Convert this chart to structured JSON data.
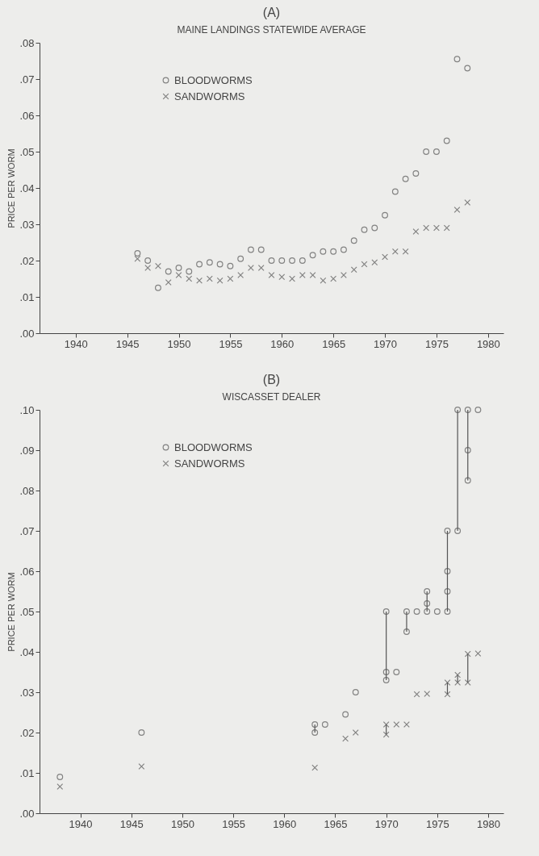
{
  "chart_data": [
    {
      "type": "scatter",
      "title": "(A)",
      "subtitle": "MAINE LANDINGS   STATEWIDE AVERAGE",
      "ylabel": "PRICE PER WORM",
      "legend": "top left",
      "grid": false,
      "xlim": [
        1936.5,
        1981.5
      ],
      "xticks": [
        1940,
        1945,
        1950,
        1955,
        1960,
        1965,
        1970,
        1975,
        1980
      ],
      "ylim": [
        0,
        0.08
      ],
      "yticks": [
        {
          "value": 0,
          "label": ".00"
        },
        {
          "value": 0.01,
          "label": ".01"
        },
        {
          "value": 0.02,
          "label": ".02"
        },
        {
          "value": 0.03,
          "label": ".03"
        },
        {
          "value": 0.04,
          "label": ".04"
        },
        {
          "value": 0.05,
          "label": ".05"
        },
        {
          "value": 0.06,
          "label": ".06"
        },
        {
          "value": 0.07,
          "label": ".07"
        },
        {
          "value": 0.08,
          "label": ".08"
        }
      ],
      "series": [
        {
          "name": "BLOODWORMS",
          "color": "#555555",
          "marker": "circle",
          "x": [
            1946,
            1947,
            1948,
            1949,
            1950,
            1951,
            1952,
            1953,
            1954,
            1955,
            1956,
            1957,
            1958,
            1959,
            1960,
            1961,
            1962,
            1963,
            1964,
            1965,
            1966,
            1967,
            1968,
            1969,
            1970,
            1971,
            1972,
            1973,
            1974,
            1975,
            1976,
            1977,
            1978
          ],
          "values": [
            0.022,
            0.02,
            0.0125,
            0.017,
            0.018,
            0.017,
            0.019,
            0.0195,
            0.019,
            0.0185,
            0.0205,
            0.023,
            0.023,
            0.02,
            0.02,
            0.02,
            0.02,
            0.0215,
            0.0225,
            0.0225,
            0.023,
            0.0255,
            0.0285,
            0.029,
            0.0325,
            0.039,
            0.0425,
            0.044,
            0.05,
            0.05,
            0.053,
            0.0755,
            0.073
          ]
        },
        {
          "name": "SANDWORMS",
          "color": "#555555",
          "marker": "cross",
          "x": [
            1946,
            1947,
            1948,
            1949,
            1950,
            1951,
            1952,
            1953,
            1954,
            1955,
            1956,
            1957,
            1958,
            1959,
            1960,
            1961,
            1962,
            1963,
            1964,
            1965,
            1966,
            1967,
            1968,
            1969,
            1970,
            1971,
            1972,
            1973,
            1974,
            1975,
            1976,
            1977,
            1978
          ],
          "values": [
            0.0205,
            0.018,
            0.0185,
            0.014,
            0.016,
            0.015,
            0.0145,
            0.015,
            0.0145,
            0.015,
            0.016,
            0.018,
            0.018,
            0.016,
            0.0155,
            0.015,
            0.016,
            0.016,
            0.0145,
            0.015,
            0.016,
            0.0175,
            0.019,
            0.0195,
            0.021,
            0.0225,
            0.0225,
            0.028,
            0.029,
            0.029,
            0.029,
            0.034,
            0.036
          ]
        }
      ]
    },
    {
      "type": "scatter",
      "title": "(B)",
      "subtitle": "WISCASSET DEALER",
      "ylabel": "PRICE PER WORM",
      "legend": "top left",
      "grid": false,
      "xlim": [
        1936,
        1981.5
      ],
      "xticks": [
        1940,
        1945,
        1950,
        1955,
        1960,
        1965,
        1970,
        1975,
        1980
      ],
      "ylim": [
        0,
        0.1
      ],
      "yticks": [
        {
          "value": 0,
          "label": ".00"
        },
        {
          "value": 0.01,
          "label": ".01"
        },
        {
          "value": 0.02,
          "label": ".02"
        },
        {
          "value": 0.03,
          "label": ".03"
        },
        {
          "value": 0.04,
          "label": ".04"
        },
        {
          "value": 0.05,
          "label": ".05"
        },
        {
          "value": 0.06,
          "label": ".06"
        },
        {
          "value": 0.07,
          "label": ".07"
        },
        {
          "value": 0.08,
          "label": ".08"
        },
        {
          "value": 0.09,
          "label": ".09"
        },
        {
          "value": 0.1,
          "label": ".10"
        }
      ],
      "series": [
        {
          "type": "line",
          "color": "#555555",
          "marker": "none",
          "line_style": "solid",
          "x": [
            1963,
            1963
          ],
          "values": [
            0.02,
            0.022
          ]
        },
        {
          "type": "line",
          "color": "#555555",
          "marker": "none",
          "line_style": "solid",
          "x": [
            1970,
            1970
          ],
          "values": [
            0.033,
            0.05
          ]
        },
        {
          "type": "line",
          "color": "#555555",
          "marker": "none",
          "line_style": "solid",
          "x": [
            1972,
            1972
          ],
          "values": [
            0.045,
            0.05
          ]
        },
        {
          "type": "line",
          "color": "#555555",
          "marker": "none",
          "line_style": "solid",
          "x": [
            1974,
            1974
          ],
          "values": [
            0.05,
            0.055
          ]
        },
        {
          "type": "line",
          "color": "#555555",
          "marker": "none",
          "line_style": "solid",
          "x": [
            1976,
            1976
          ],
          "values": [
            0.05,
            0.07
          ]
        },
        {
          "type": "line",
          "color": "#555555",
          "marker": "none",
          "line_style": "solid",
          "x": [
            1977,
            1977
          ],
          "values": [
            0.07,
            0.1
          ]
        },
        {
          "type": "line",
          "color": "#555555",
          "marker": "none",
          "line_style": "solid",
          "x": [
            1978,
            1978
          ],
          "values": [
            0.0825,
            0.1
          ]
        },
        {
          "type": "line",
          "color": "#555555",
          "marker": "none",
          "line_style": "solid",
          "x": [
            1970,
            1970
          ],
          "values": [
            0.0195,
            0.022
          ]
        },
        {
          "type": "line",
          "color": "#555555",
          "marker": "none",
          "line_style": "solid",
          "x": [
            1976,
            1976
          ],
          "values": [
            0.0295,
            0.0324
          ]
        },
        {
          "type": "line",
          "color": "#555555",
          "marker": "none",
          "line_style": "solid",
          "x": [
            1977,
            1977
          ],
          "values": [
            0.0324,
            0.0343
          ]
        },
        {
          "type": "line",
          "color": "#555555",
          "marker": "none",
          "line_style": "solid",
          "x": [
            1978,
            1978
          ],
          "values": [
            0.0324,
            0.0395
          ]
        },
        {
          "name": "BLOODWORMS",
          "color": "#555555",
          "marker": "circle",
          "x": [
            1938,
            1946,
            1963,
            1963,
            1964,
            1966,
            1967,
            1970,
            1970,
            1970,
            1971,
            1972,
            1972,
            1973,
            1974,
            1974,
            1974,
            1975,
            1976,
            1976,
            1976,
            1976,
            1977,
            1977,
            1978,
            1978,
            1978,
            1979
          ],
          "values": [
            0.009,
            0.02,
            0.022,
            0.02,
            0.022,
            0.0245,
            0.03,
            0.05,
            0.035,
            0.033,
            0.035,
            0.05,
            0.045,
            0.05,
            0.05,
            0.052,
            0.055,
            0.05,
            0.05,
            0.055,
            0.06,
            0.07,
            0.07,
            0.1,
            0.1,
            0.09,
            0.0825,
            0.1
          ]
        },
        {
          "name": "SANDWORMS",
          "color": "#555555",
          "marker": "cross",
          "x": [
            1938,
            1946,
            1963,
            1966,
            1967,
            1970,
            1970,
            1971,
            1972,
            1973,
            1974,
            1976,
            1976,
            1977,
            1977,
            1978,
            1978,
            1979
          ],
          "values": [
            0.0066,
            0.0116,
            0.0113,
            0.0185,
            0.02,
            0.022,
            0.0195,
            0.022,
            0.022,
            0.0295,
            0.0296,
            0.0295,
            0.0324,
            0.0324,
            0.0343,
            0.0324,
            0.0395,
            0.0396
          ]
        }
      ]
    }
  ]
}
